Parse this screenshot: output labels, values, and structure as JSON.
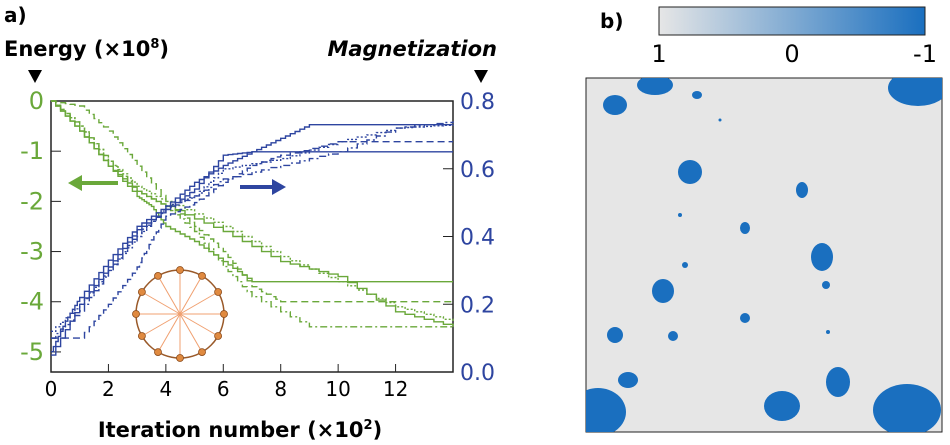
{
  "panel_a": {
    "label": "a)"
  },
  "panel_b": {
    "label": "b)"
  },
  "chart_data": [
    {
      "type": "line",
      "xlabel": "Iteration number (×10²)",
      "xlabel_parts": [
        "Iteration number (×10",
        "2",
        ")"
      ],
      "ylabel_left": "Energy (×10⁸)",
      "ylabel_left_parts": [
        "Energy (×10",
        "8",
        ")"
      ],
      "ylabel_right": "Magnetization",
      "xlim": [
        0,
        14
      ],
      "ylim_left": [
        -5.4,
        0
      ],
      "ylim_right": [
        0,
        0.8
      ],
      "xticks": [
        "0",
        "2",
        "4",
        "6",
        "8",
        "10",
        "12"
      ],
      "yticks_left": [
        "0",
        "-1",
        "-2",
        "-3",
        "-4",
        "-5"
      ],
      "yticks_right": [
        "0.8",
        "0.6",
        "0.4",
        "0.2",
        "0.0"
      ],
      "colors": {
        "energy": "#6aa83a",
        "magnetization": "#2e45a0"
      },
      "energy_series": [
        {
          "style": "solid",
          "x": [
            0,
            1,
            2,
            3,
            3.5,
            4,
            5,
            6,
            7,
            14
          ],
          "y": [
            0,
            -0.6,
            -1.3,
            -1.9,
            -2.1,
            -2.5,
            -2.8,
            -3.2,
            -3.6,
            -3.6
          ]
        },
        {
          "style": "dashed",
          "x": [
            0,
            1,
            2,
            3,
            4,
            5,
            6,
            7,
            8,
            14
          ],
          "y": [
            0,
            -0.1,
            -0.6,
            -1.3,
            -2.0,
            -2.5,
            -3.0,
            -3.7,
            -4.0,
            -4.0
          ]
        },
        {
          "style": "dotted",
          "x": [
            0,
            1,
            2,
            3,
            4,
            6,
            8,
            10,
            12,
            14
          ],
          "y": [
            0,
            -0.5,
            -1.2,
            -1.7,
            -2.0,
            -2.5,
            -3.1,
            -3.6,
            -4.1,
            -4.4
          ]
        },
        {
          "style": "solid",
          "x": [
            0,
            1,
            2,
            3,
            4,
            6,
            8,
            10,
            12,
            14
          ],
          "y": [
            0,
            -0.6,
            -1.3,
            -1.8,
            -2.1,
            -2.6,
            -3.2,
            -3.5,
            -4.2,
            -4.5
          ]
        },
        {
          "style": "dashdot",
          "x": [
            0,
            1,
            2,
            3,
            4,
            5,
            6,
            7,
            9,
            14
          ],
          "y": [
            0,
            -0.5,
            -1.2,
            -1.8,
            -2.1,
            -2.6,
            -3.3,
            -3.9,
            -4.5,
            -4.5
          ]
        }
      ],
      "magnetization_series": [
        {
          "style": "solid",
          "x": [
            0,
            0.5,
            1,
            2,
            3,
            4,
            5,
            6,
            7,
            8,
            9,
            14
          ],
          "y": [
            0.06,
            0.15,
            0.22,
            0.33,
            0.43,
            0.49,
            0.56,
            0.61,
            0.65,
            0.69,
            0.73,
            0.73
          ]
        },
        {
          "style": "dashed",
          "x": [
            0,
            1,
            2,
            3,
            3.5,
            4,
            5,
            6,
            7,
            8,
            10,
            14
          ],
          "y": [
            0.1,
            0.1,
            0.2,
            0.31,
            0.39,
            0.46,
            0.5,
            0.56,
            0.61,
            0.64,
            0.68,
            0.68
          ]
        },
        {
          "style": "dotted",
          "x": [
            0,
            1,
            2,
            3,
            4,
            5,
            6,
            8,
            10,
            12,
            14
          ],
          "y": [
            0.12,
            0.2,
            0.3,
            0.4,
            0.49,
            0.52,
            0.6,
            0.63,
            0.68,
            0.72,
            0.73
          ]
        },
        {
          "style": "solid",
          "x": [
            0,
            1,
            2,
            3,
            4,
            5,
            6,
            7,
            14
          ],
          "y": [
            0.05,
            0.2,
            0.31,
            0.42,
            0.48,
            0.54,
            0.64,
            0.65,
            0.65
          ]
        },
        {
          "style": "dashdot",
          "x": [
            0,
            1,
            2,
            3,
            4,
            5,
            6,
            8,
            10,
            12,
            14
          ],
          "y": [
            0.1,
            0.18,
            0.3,
            0.41,
            0.48,
            0.52,
            0.57,
            0.61,
            0.65,
            0.72,
            0.74
          ]
        }
      ],
      "inset": "12-node ring with spokes"
    },
    {
      "type": "heatmap",
      "colorbar": {
        "ticks": [
          "1",
          "0",
          "-1"
        ],
        "colors": [
          "#e6e6e6",
          "#1a6fbf"
        ]
      },
      "colors": {
        "background": "#e6e6e6",
        "domain": "#1a6fbf"
      }
    }
  ]
}
